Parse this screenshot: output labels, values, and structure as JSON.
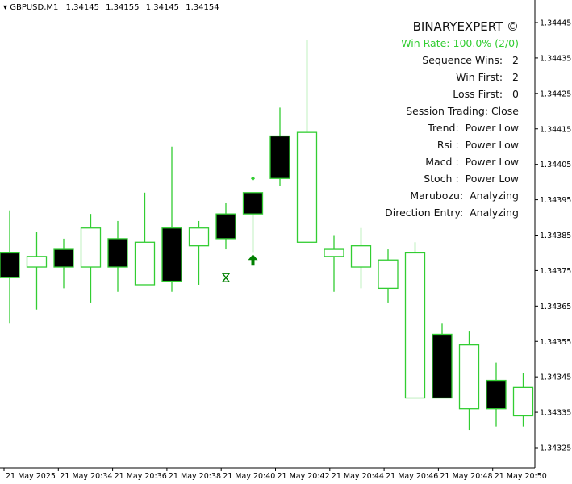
{
  "header": {
    "symbol": "GBPUSD,M1",
    "ohlc": [
      "1.34145",
      "1.34155",
      "1.34145",
      "1.34154"
    ]
  },
  "panel": {
    "title": "BINARYEXPERT ©",
    "win_rate": "Win Rate: 100.0%  (2/0)",
    "rows": [
      "Sequence Wins:   2",
      "Win First:   2",
      "Loss First:   0",
      "Session Trading: Close",
      "Trend:  Power Low",
      "Rsi :  Power Low",
      "Macd :  Power Low",
      "Stoch :  Power Low",
      "Marubozu:  Analyzing",
      "Direction Entry:  Analyzing"
    ]
  },
  "colors": {
    "background": "#ffffff",
    "up_wick": "#32cd32",
    "down_body": "#000000",
    "arrow": "#008000",
    "win_rate": "#32cd32"
  },
  "chart_data": {
    "type": "candlestick",
    "symbol": "GBPUSD",
    "timeframe": "M1",
    "price_axis": [
      "1.34445",
      "1.34435",
      "1.34425",
      "1.34415",
      "1.34405",
      "1.34395",
      "1.34385",
      "1.34375",
      "1.34365",
      "1.34355",
      "1.34345",
      "1.34335",
      "1.34325"
    ],
    "time_axis": [
      "21 May 2025",
      "21 May 20:34",
      "21 May 20:36",
      "21 May 20:38",
      "21 May 20:40",
      "21 May 20:42",
      "21 May 20:44",
      "21 May 20:46",
      "21 May 20:48",
      "21 May 20:50"
    ],
    "candles": [
      {
        "o": 1.3438,
        "h": 1.34392,
        "l": 1.3436,
        "c": 1.34373
      },
      {
        "o": 1.34376,
        "h": 1.34386,
        "l": 1.34364,
        "c": 1.34379
      },
      {
        "o": 1.34381,
        "h": 1.34384,
        "l": 1.3437,
        "c": 1.34376
      },
      {
        "o": 1.34376,
        "h": 1.34391,
        "l": 1.34366,
        "c": 1.34387
      },
      {
        "o": 1.34384,
        "h": 1.34389,
        "l": 1.34369,
        "c": 1.34376
      },
      {
        "o": 1.34371,
        "h": 1.34397,
        "l": 1.34371,
        "c": 1.34383
      },
      {
        "o": 1.34387,
        "h": 1.3441,
        "l": 1.34369,
        "c": 1.34372
      },
      {
        "o": 1.34382,
        "h": 1.34389,
        "l": 1.34371,
        "c": 1.34387
      },
      {
        "o": 1.34391,
        "h": 1.34394,
        "l": 1.34381,
        "c": 1.34384
      },
      {
        "o": 1.34397,
        "h": 1.34397,
        "l": 1.3438,
        "c": 1.34391
      },
      {
        "o": 1.34413,
        "h": 1.34421,
        "l": 1.34399,
        "c": 1.34401
      },
      {
        "o": 1.34383,
        "h": 1.3444,
        "l": 1.34383,
        "c": 1.34414
      },
      {
        "o": 1.34379,
        "h": 1.34385,
        "l": 1.34369,
        "c": 1.34381
      },
      {
        "o": 1.34376,
        "h": 1.34387,
        "l": 1.3437,
        "c": 1.34382
      },
      {
        "o": 1.3437,
        "h": 1.34381,
        "l": 1.34366,
        "c": 1.34378
      },
      {
        "o": 1.34339,
        "h": 1.34383,
        "l": 1.34339,
        "c": 1.3438
      },
      {
        "o": 1.34357,
        "h": 1.3436,
        "l": 1.34339,
        "c": 1.34339
      },
      {
        "o": 1.34336,
        "h": 1.34358,
        "l": 1.3433,
        "c": 1.34354
      },
      {
        "o": 1.34344,
        "h": 1.34349,
        "l": 1.34331,
        "c": 1.34336
      },
      {
        "o": 1.34334,
        "h": 1.34346,
        "l": 1.34331,
        "c": 1.34342
      }
    ],
    "signals": [
      {
        "type": "up-arrow",
        "candle": 9,
        "price": 1.34378
      },
      {
        "type": "dot",
        "candle": 9,
        "price": 1.34401
      },
      {
        "type": "hourglass",
        "candle": 8,
        "price": 1.34373
      }
    ]
  }
}
